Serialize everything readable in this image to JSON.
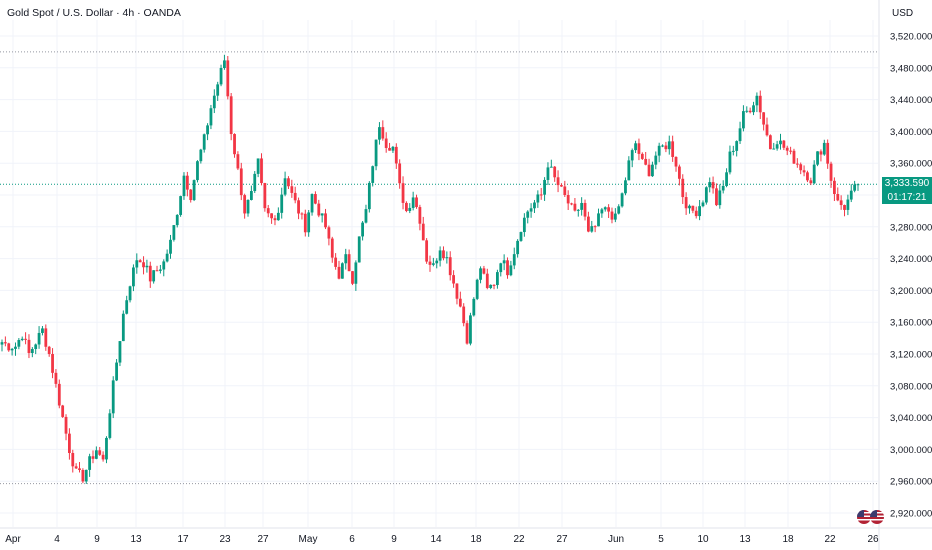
{
  "header": {
    "title": "Gold Spot / U.S. Dollar · 4h · OANDA",
    "currency": "USD"
  },
  "price_label": {
    "value": "3,333.590",
    "countdown": "01:17:21"
  },
  "colors": {
    "up": "#089981",
    "down": "#f23645",
    "last_line": "#089981",
    "grid": "#f0f3fa",
    "level_line": "#9598a1",
    "axis_text": "#131722"
  },
  "icons": [
    "us-flag-icon",
    "us-flag-icon"
  ],
  "chart_data": {
    "type": "candlestick",
    "title": "Gold Spot / U.S. Dollar · 4h · OANDA",
    "ylim": [
      2900,
      3540
    ],
    "y_ticks": [
      2920,
      2960,
      3000,
      3040,
      3080,
      3120,
      3160,
      3200,
      3240,
      3280,
      3320,
      3360,
      3400,
      3440,
      3480,
      3520
    ],
    "y_tick_labels": [
      "2,920.000",
      "2,960.000",
      "3,000.000",
      "3,040.000",
      "3,080.000",
      "3,120.000",
      "3,160.000",
      "3,200.000",
      "3,240.000",
      "3,280.000",
      "3,320.000",
      "3,360.000",
      "3,400.000",
      "3,440.000",
      "3,480.000",
      "3,520.000"
    ],
    "x_ticks": [
      "Apr",
      "4",
      "9",
      "13",
      "17",
      "23",
      "27",
      "May",
      "6",
      "9",
      "14",
      "18",
      "22",
      "27",
      "Jun",
      "5",
      "10",
      "13",
      "18",
      "22",
      "26"
    ],
    "last_price": 3333.59,
    "horizontal_levels": [
      3500,
      2957
    ],
    "trend_closes": [
      3135,
      3130,
      3130,
      3145,
      3120,
      3135,
      3150,
      3120,
      3080,
      3040,
      3000,
      2970,
      2965,
      2985,
      3000,
      2985,
      3050,
      3110,
      3170,
      3210,
      3240,
      3235,
      3215,
      3225,
      3235,
      3260,
      3300,
      3345,
      3320,
      3360,
      3390,
      3430,
      3460,
      3490,
      3400,
      3350,
      3300,
      3320,
      3360,
      3300,
      3290,
      3300,
      3345,
      3320,
      3300,
      3280,
      3320,
      3300,
      3280,
      3240,
      3220,
      3240,
      3215,
      3265,
      3300,
      3360,
      3410,
      3385,
      3380,
      3330,
      3300,
      3320,
      3290,
      3240,
      3230,
      3255,
      3240,
      3210,
      3180,
      3140,
      3190,
      3230,
      3200,
      3210,
      3240,
      3225,
      3250,
      3280,
      3300,
      3310,
      3320,
      3360,
      3340,
      3325,
      3310,
      3295,
      3310,
      3270,
      3280,
      3300,
      3300,
      3290,
      3320,
      3360,
      3385,
      3360,
      3350,
      3370,
      3380,
      3385,
      3360,
      3320,
      3300,
      3300,
      3315,
      3340,
      3310,
      3330,
      3370,
      3390,
      3420,
      3430,
      3445,
      3410,
      3380,
      3390,
      3380,
      3370,
      3360,
      3350,
      3340,
      3370,
      3385,
      3340,
      3310,
      3305,
      3320,
      3333.59
    ]
  }
}
